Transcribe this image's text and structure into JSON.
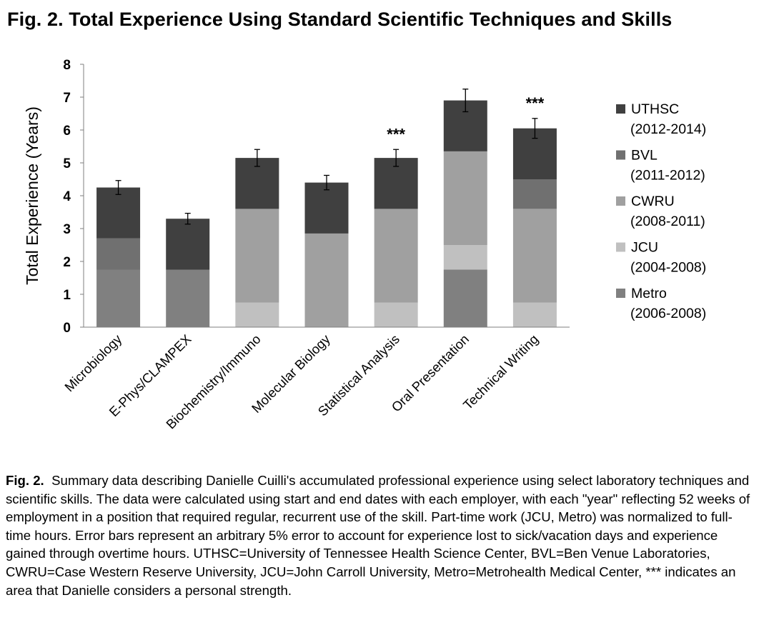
{
  "page": {
    "title": "Fig. 2. Total Experience Using Standard Scientific Techniques and Skills"
  },
  "chart_data": {
    "type": "bar",
    "stacked": true,
    "title": "Fig. 2. Total Experience Using Standard Scientific Techniques and Skills",
    "ylabel": "Total Experience (Years)",
    "xlabel": "",
    "ylim": [
      0,
      8
    ],
    "yticks": [
      "0",
      "1",
      "2",
      "3",
      "4",
      "5",
      "6",
      "7",
      "8"
    ],
    "grid": false,
    "legend_position": "right",
    "categories": [
      "Microbiology",
      "E-Phys/CLAMPEX",
      "Biochemistry/Immuno",
      "Molecular Biology",
      "Statistical Analysis",
      "Oral Presentation",
      "Technical Writing"
    ],
    "series": [
      {
        "name": "Metro",
        "period": "(2006-2008)",
        "color": "#808080",
        "values": [
          1.75,
          1.75,
          0,
          0,
          0,
          1.75,
          0
        ]
      },
      {
        "name": "JCU",
        "period": "(2004-2008)",
        "color": "#c0c0c0",
        "values": [
          0,
          0,
          0.75,
          0,
          0.75,
          0.75,
          0.75
        ]
      },
      {
        "name": "CWRU",
        "period": "(2008-2011)",
        "color": "#a0a0a0",
        "values": [
          0,
          0,
          2.85,
          2.85,
          2.85,
          2.85,
          2.85
        ]
      },
      {
        "name": "BVL",
        "period": "(2011-2012)",
        "color": "#707070",
        "values": [
          0.95,
          0,
          0,
          0,
          0,
          0,
          0.9
        ]
      },
      {
        "name": "UTHSC",
        "period": "(2012-2014)",
        "color": "#404040",
        "values": [
          1.55,
          1.55,
          1.55,
          1.55,
          1.55,
          1.55,
          1.55
        ]
      }
    ],
    "totals": [
      4.25,
      3.3,
      5.15,
      4.4,
      5.15,
      6.9,
      6.05
    ],
    "error_percent": 5,
    "annotations": [
      {
        "category": "Statistical Analysis",
        "text": "***"
      },
      {
        "category": "Technical Writing",
        "text": "***"
      }
    ]
  },
  "caption": {
    "label": "Fig. 2.",
    "text": "Summary data describing Danielle Cuilli's accumulated professional experience using select laboratory techniques and scientific skills. The data were calculated using start and end dates with each employer, with each \"year\" reflecting 52 weeks of employment in a position that required regular, recurrent use of the skill. Part-time work (JCU, Metro) was normalized to full-time hours.  Error bars represent an arbitrary 5% error to account for experience lost to sick/vacation days and experience gained through overtime hours.  UTHSC=University of Tennessee Health Science Center, BVL=Ben Venue Laboratories, CWRU=Case Western Reserve University, JCU=John Carroll University, Metro=Metrohealth Medical Center, *** indicates an area that Danielle considers a personal strength."
  }
}
